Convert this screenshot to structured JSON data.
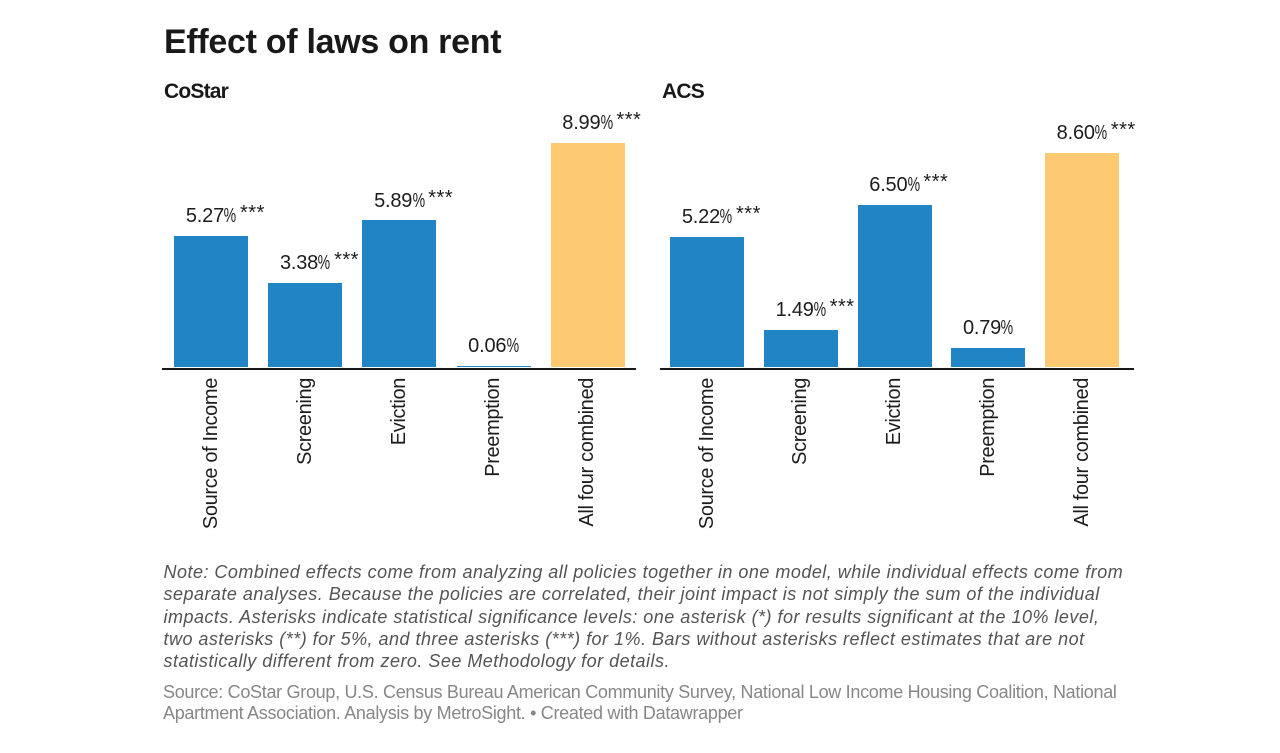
{
  "title": "Effect of laws on rent",
  "note": "Note: Combined effects come from analyzing all policies together in one model, while individual effects come from separate analyses. Because the policies are correlated, their joint impact is not simply the sum of the individual impacts. Asterisks indicate statistical significance levels: one asterisk (*) for results significant at the 10% level, two asterisks (**) for 5%, and three asterisks (***) for 1%. Bars without asterisks reflect estimates that are not statistically different from zero. See Methodology for details.",
  "source": "Source: CoStar Group, U.S. Census Bureau American Community Survey, National Low Income Housing Coalition, National Apartment Association. Analysis by MetroSight. • Created with Datawrapper",
  "colors": {
    "bar_default": "#2185c5",
    "bar_combined": "#fdc971",
    "axis": "#181818",
    "title_text": "#191919",
    "label_text": "#1d1d1d",
    "note_text": "#545454",
    "source_text": "#878787"
  },
  "chart_data": {
    "type": "bar",
    "title": "Effect of laws on rent",
    "categories": [
      "Source of Income",
      "Screening",
      "Eviction",
      "Preemption",
      "All four combined"
    ],
    "series": [
      {
        "name": "CoStar",
        "values": [
          5.27,
          3.38,
          5.89,
          0.06,
          8.99
        ],
        "labels": [
          "5.27%",
          "3.38%",
          "5.89%",
          "0.06%",
          "8.99%"
        ],
        "significance": [
          "***",
          "***",
          "***",
          "",
          "***"
        ]
      },
      {
        "name": "ACS",
        "values": [
          5.22,
          1.49,
          6.5,
          0.79,
          8.6
        ],
        "labels": [
          "5.22%",
          "1.49%",
          "6.50%",
          "0.79%",
          "8.60%"
        ],
        "significance": [
          "***",
          "***",
          "***",
          "",
          "***"
        ]
      }
    ],
    "ylabel": "",
    "xlabel": "",
    "ylim": [
      0,
      10.4
    ],
    "grid": false,
    "legend": false,
    "annotation_style": "asterisks indicate statistical significance"
  }
}
